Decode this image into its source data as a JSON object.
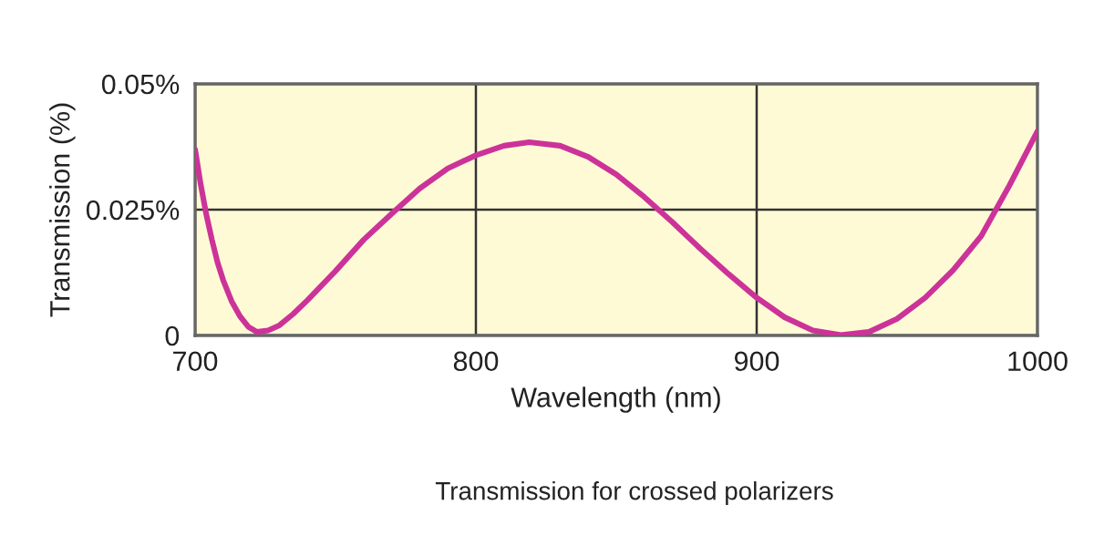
{
  "chart_data": {
    "type": "line",
    "xlabel": "Wavelength (nm)",
    "ylabel": "Transmission (%)",
    "annotations": [
      "Transmission for crossed polarizers"
    ],
    "series": [
      {
        "color": "#cc3399",
        "x": [
          700,
          702,
          704,
          706,
          708,
          710,
          713,
          716,
          719,
          722,
          726,
          730,
          735,
          740,
          750,
          760,
          770,
          780,
          790,
          800,
          810,
          819,
          830,
          840,
          850,
          860,
          870,
          880,
          890,
          900,
          910,
          920,
          930,
          940,
          950,
          960,
          970,
          980,
          990,
          1000
        ],
        "values": [
          0.037,
          0.03,
          0.024,
          0.019,
          0.0145,
          0.011,
          0.0068,
          0.0038,
          0.0017,
          0.0007,
          0.001,
          0.002,
          0.0043,
          0.007,
          0.0128,
          0.019,
          0.0242,
          0.0292,
          0.0332,
          0.0358,
          0.0377,
          0.0384,
          0.0377,
          0.0355,
          0.032,
          0.0275,
          0.0225,
          0.0172,
          0.0122,
          0.0075,
          0.0036,
          0.001,
          0.0001,
          0.0007,
          0.0033,
          0.0075,
          0.013,
          0.0198,
          0.0298,
          0.0406
        ]
      }
    ],
    "xlim": [
      700,
      1000
    ],
    "ylim": [
      0,
      0.05
    ],
    "xticks": [
      700,
      800,
      900,
      1000
    ],
    "yticks": [
      {
        "value": 0,
        "label": "0"
      },
      {
        "value": 0.025,
        "label": "0.025%"
      },
      {
        "value": 0.05,
        "label": "0.05%"
      }
    ],
    "grid": true
  }
}
